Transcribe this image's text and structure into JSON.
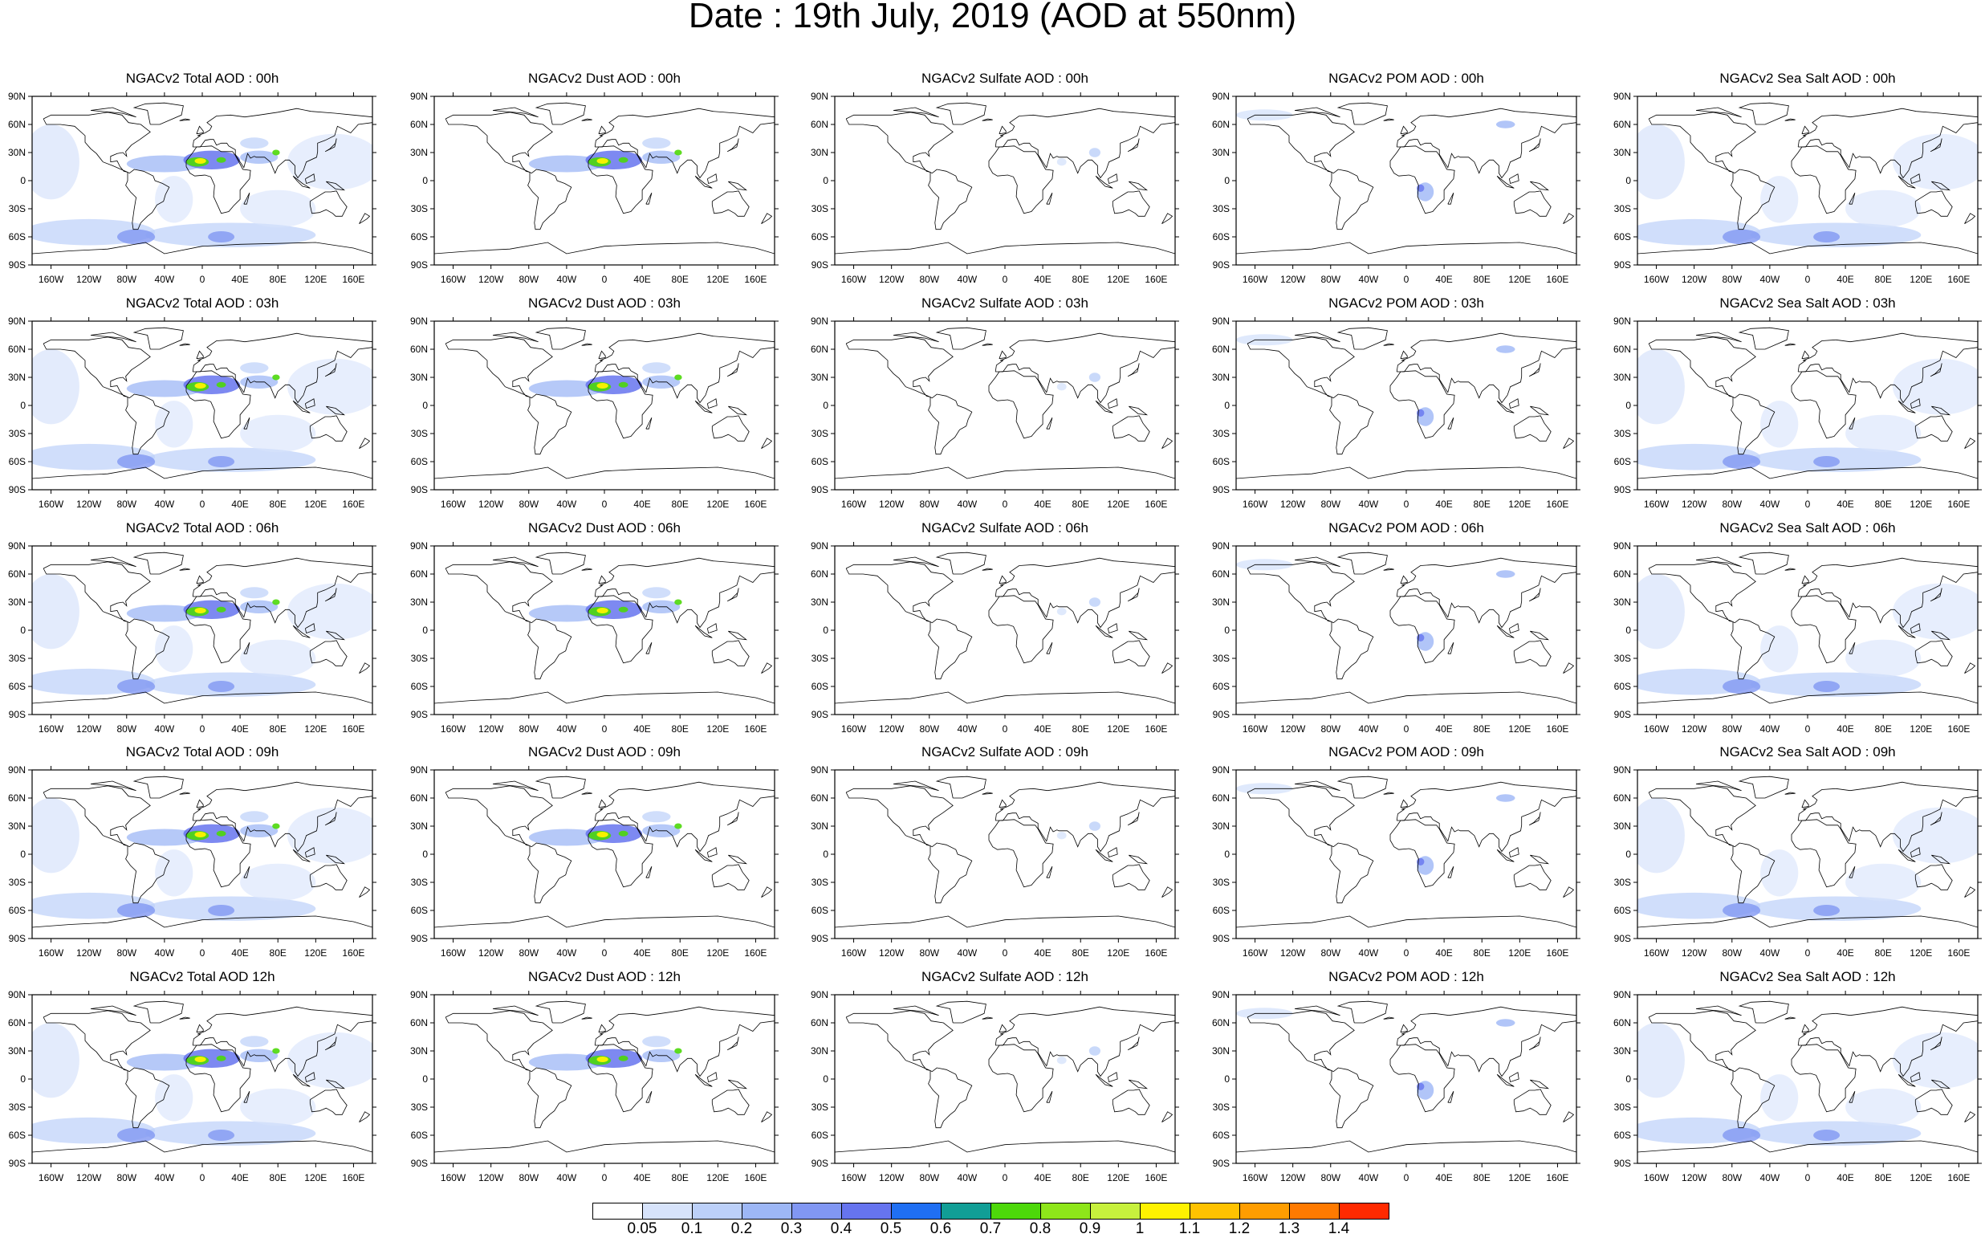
{
  "title": "Date : 19th July, 2019 (AOD at 550nm)",
  "lat_labels": [
    "90N",
    "60N",
    "30N",
    "0",
    "30S",
    "60S",
    "90S"
  ],
  "lon_labels": [
    "160W",
    "120W",
    "80W",
    "40W",
    "0",
    "40E",
    "80E",
    "120E",
    "160E"
  ],
  "panels": [
    [
      "NGACv2 Total AOD : 00h",
      "NGACv2 Dust AOD : 00h",
      "NGACv2 Sulfate AOD : 00h",
      "NGACv2 POM AOD : 00h",
      "NGACv2 Sea Salt AOD : 00h"
    ],
    [
      "NGACv2 Total AOD : 03h",
      "NGACv2 Dust AOD : 03h",
      "NGACv2 Sulfate AOD : 03h",
      "NGACv2 POM AOD : 03h",
      "NGACv2 Sea Salt AOD : 03h"
    ],
    [
      "NGACv2 Total AOD : 06h",
      "NGACv2 Dust AOD : 06h",
      "NGACv2 Sulfate AOD : 06h",
      "NGACv2 POM AOD : 06h",
      "NGACv2 Sea Salt AOD : 06h"
    ],
    [
      "NGACv2 Total AOD : 09h",
      "NGACv2 Dust AOD : 09h",
      "NGACv2 Sulfate AOD : 09h",
      "NGACv2 POM AOD : 09h",
      "NGACv2 Sea Salt  AOD : 09h"
    ],
    [
      "NGACv2 Total AOD  12h",
      "NGACv2 Dust AOD : 12h",
      "NGACv2 Sulfate AOD : 12h",
      "NGACv2 POM  AOD : 12h",
      "NGACv2 Sea Salt  AOD : 12h"
    ]
  ],
  "colorbar": {
    "labels": [
      "0.05",
      "0.1",
      "0.2",
      "0.3",
      "0.4",
      "0.5",
      "0.6",
      "0.7",
      "0.8",
      "0.9",
      "1",
      "1.1",
      "1.2",
      "1.3",
      "1.4"
    ],
    "colors": [
      "#ffffff",
      "#d7e3fb",
      "#bcd0f9",
      "#9db7f6",
      "#8197f3",
      "#6674ef",
      "#1f6ff3",
      "#119e96",
      "#4dd80a",
      "#8ee61a",
      "#c7f13d",
      "#fff200",
      "#ffc200",
      "#ff9d00",
      "#ff7a00",
      "#ff2a00"
    ]
  }
}
